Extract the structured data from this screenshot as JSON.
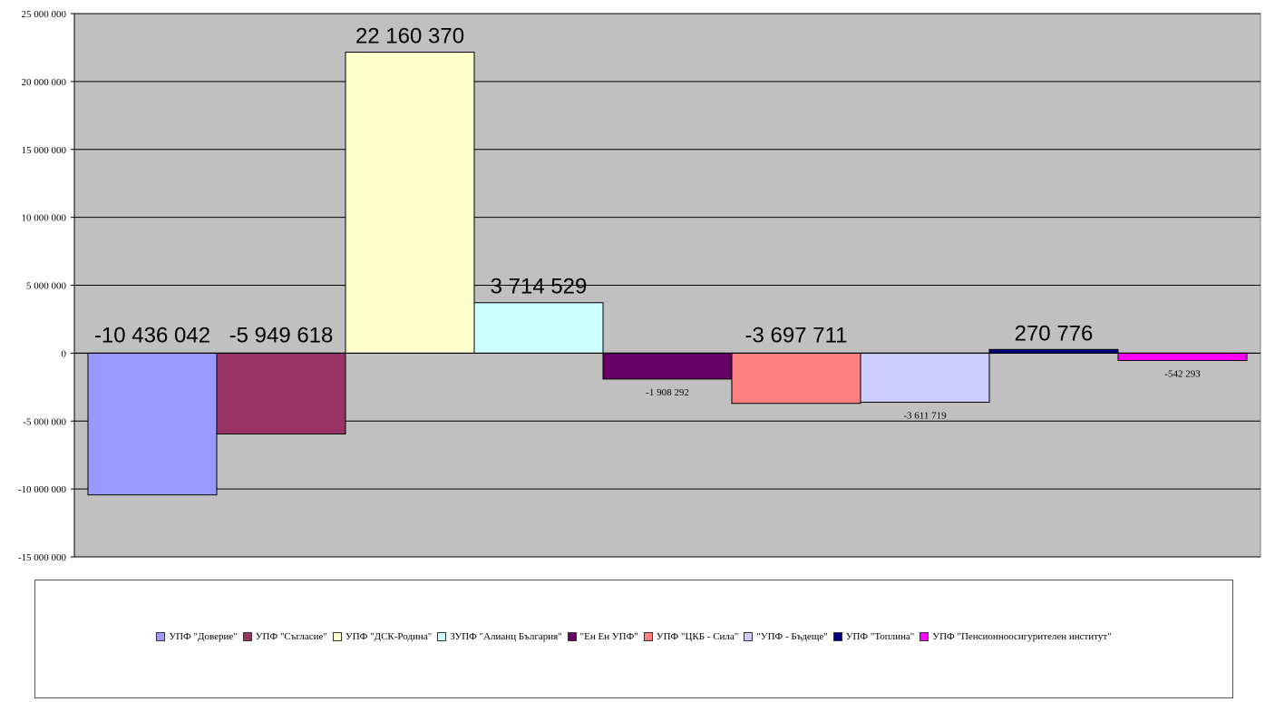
{
  "chart_data": {
    "type": "bar",
    "ylim": [
      -15000000,
      25000000
    ],
    "yticks": [
      25000000,
      20000000,
      15000000,
      10000000,
      5000000,
      0,
      -5000000,
      -10000000,
      -15000000
    ],
    "ytick_labels": [
      "25 000 000",
      "20 000 000",
      "15 000 000",
      "10 000 000",
      "5 000 000",
      "0",
      "-5 000 000",
      "-10 000 000",
      "-15 000 000"
    ],
    "grid": true,
    "legend_position": "bottom",
    "plot_background": "#c0c0c0",
    "series": [
      {
        "name": "УПФ \"Доверие\"",
        "value": -10436042,
        "label": "-10 436 042",
        "label_size": "large",
        "color": "#9999ff"
      },
      {
        "name": "УПФ \"Съгласие\"",
        "value": -5949618,
        "label": "-5 949 618",
        "label_size": "large",
        "color": "#993366"
      },
      {
        "name": "УПФ \"ДСК-Родина\"",
        "value": 22160370,
        "label": "22 160 370",
        "label_size": "large",
        "color": "#ffffcc"
      },
      {
        "name": "ЗУПФ \"Алианц България\"",
        "value": 3714529,
        "label": "3 714 529",
        "label_size": "large",
        "color": "#ccffff"
      },
      {
        "name": "\"Ен Ен УПФ\"",
        "value": -1908292,
        "label": "-1 908 292",
        "label_size": "small",
        "color": "#660066"
      },
      {
        "name": "УПФ \"ЦКБ - Сила\"",
        "value": -3697711,
        "label": "-3 697 711",
        "label_size": "large",
        "color": "#ff8080"
      },
      {
        "name": "\"УПФ - Бъдеще\"",
        "value": -3611719,
        "label": "-3 611 719",
        "label_size": "small",
        "color": "#ccccff"
      },
      {
        "name": "УПФ \"Топлина\"",
        "value": 270776,
        "label": "270 776",
        "label_size": "large",
        "color": "#000080"
      },
      {
        "name": "УПФ \"Пенсионноосигурителен институт\"",
        "value": -542293,
        "label": "-542 293",
        "label_size": "small",
        "color": "#ff00ff"
      }
    ]
  }
}
